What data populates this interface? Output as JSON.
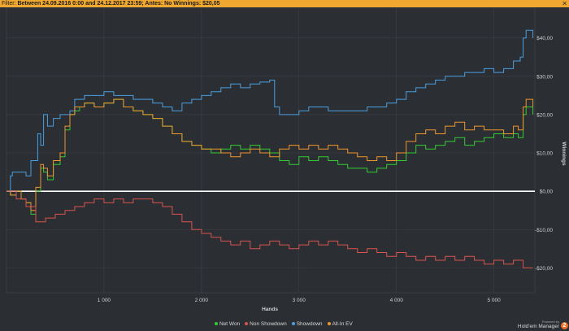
{
  "filter": {
    "label": "Filter:",
    "text": "Between 24.09.2016 0:00 and 24.12.2017 23:59; Antes: No Winnings: $20,05"
  },
  "chart_data": {
    "type": "line",
    "xlabel": "Hands",
    "ylabel": "Winnings",
    "xlim": [
      0,
      5420
    ],
    "ylim": [
      -26.5,
      48
    ],
    "x_ticks": [
      1000,
      2000,
      3000,
      4000,
      5000
    ],
    "x_tick_labels": [
      "1 000",
      "2 000",
      "3 000",
      "4 000",
      "5 000"
    ],
    "y_ticks": [
      40,
      30,
      20,
      10,
      0,
      -10,
      -20
    ],
    "y_tick_labels": [
      "$40,00",
      "$30,00",
      "$20,00",
      "$10,00",
      "$0,00",
      "-$10,00",
      "-$20,00"
    ],
    "grid": true,
    "legend_position": "bottom",
    "series": [
      {
        "name": "Showdown",
        "color": "#4a9fe0",
        "x": [
          0,
          40,
          60,
          200,
          250,
          320,
          350,
          380,
          420,
          480,
          550,
          650,
          700,
          800,
          900,
          1000,
          1100,
          1300,
          1500,
          1600,
          1700,
          1800,
          1900,
          2000,
          2100,
          2200,
          2300,
          2400,
          2500,
          2600,
          2700,
          2750,
          2800,
          3000,
          3100,
          3300,
          3500,
          3700,
          3800,
          3900,
          4000,
          4100,
          4200,
          4300,
          4400,
          4500,
          4700,
          4900,
          5000,
          5100,
          5200,
          5270,
          5300,
          5330,
          5400
        ],
        "y": [
          0,
          4,
          5,
          4,
          8,
          15,
          12,
          20,
          17,
          19,
          20,
          21,
          24,
          25,
          25,
          26,
          25,
          24,
          23,
          22,
          21,
          23,
          24,
          25,
          26,
          27,
          28,
          27,
          28,
          28.5,
          29,
          22,
          20,
          21,
          22,
          21,
          21,
          22,
          22,
          23,
          24,
          26,
          27,
          28,
          29,
          30,
          31,
          32,
          31,
          32,
          34,
          35,
          40,
          42,
          40
        ]
      },
      {
        "name": "Net Won",
        "color": "#33cc33",
        "x": [
          0,
          40,
          100,
          150,
          200,
          250,
          300,
          350,
          380,
          420,
          480,
          550,
          600,
          650,
          700,
          750,
          800,
          900,
          1000,
          1100,
          1200,
          1300,
          1400,
          1500,
          1600,
          1700,
          1800,
          1900,
          2000,
          2100,
          2200,
          2300,
          2400,
          2500,
          2600,
          2700,
          2800,
          2900,
          3000,
          3100,
          3200,
          3300,
          3400,
          3500,
          3600,
          3700,
          3800,
          3900,
          4000,
          4100,
          4200,
          4300,
          4400,
          4500,
          4600,
          4700,
          4800,
          4900,
          5000,
          5100,
          5200,
          5250,
          5300,
          5330,
          5400
        ],
        "y": [
          0,
          -1,
          0,
          -2,
          -3,
          -6,
          0,
          6,
          5,
          3,
          7,
          9,
          16,
          20,
          21,
          22,
          23,
          22,
          23,
          24,
          22,
          21,
          20,
          19,
          17,
          15,
          13,
          12,
          11,
          10,
          11,
          12,
          11,
          12,
          11,
          10,
          8,
          7,
          9,
          8,
          9,
          8,
          7,
          6,
          6,
          5,
          6,
          7,
          8,
          10,
          12,
          11,
          12,
          13,
          14,
          12,
          13,
          14,
          15,
          14,
          15,
          14,
          20,
          22,
          20
        ]
      },
      {
        "name": "All-In EV",
        "color": "#f0962e",
        "x": [
          0,
          40,
          100,
          150,
          200,
          250,
          300,
          350,
          380,
          420,
          480,
          550,
          600,
          650,
          700,
          750,
          800,
          900,
          1000,
          1100,
          1200,
          1300,
          1400,
          1500,
          1600,
          1700,
          1800,
          1900,
          2000,
          2100,
          2200,
          2300,
          2400,
          2500,
          2600,
          2700,
          2800,
          2900,
          3000,
          3100,
          3200,
          3300,
          3400,
          3500,
          3600,
          3700,
          3800,
          3900,
          4000,
          4100,
          4200,
          4300,
          4400,
          4500,
          4600,
          4700,
          4800,
          4900,
          5000,
          5100,
          5200,
          5250,
          5300,
          5330,
          5400
        ],
        "y": [
          0,
          -1,
          0,
          -2,
          -3,
          -5,
          1,
          7,
          6,
          4,
          8,
          10,
          17,
          20,
          22,
          22,
          23,
          22,
          23,
          24,
          22,
          21,
          20,
          19,
          17,
          15,
          13,
          12,
          11,
          11,
          10,
          9,
          10,
          11,
          10,
          9,
          11,
          12,
          11,
          12,
          11,
          12,
          11,
          10,
          9,
          8,
          9,
          8,
          10,
          13,
          15,
          16,
          15,
          17,
          18,
          16,
          17,
          16,
          16,
          15,
          17,
          16,
          22,
          24,
          22
        ]
      },
      {
        "name": "Non Showdown",
        "color": "#d9534f",
        "x": [
          0,
          100,
          200,
          300,
          400,
          500,
          600,
          700,
          800,
          900,
          1000,
          1100,
          1200,
          1300,
          1400,
          1500,
          1600,
          1700,
          1800,
          1900,
          2000,
          2100,
          2200,
          2300,
          2400,
          2500,
          2600,
          2700,
          2800,
          2900,
          3000,
          3100,
          3200,
          3300,
          3400,
          3500,
          3600,
          3700,
          3800,
          3900,
          4000,
          4100,
          4200,
          4300,
          4400,
          4500,
          4600,
          4700,
          4800,
          4900,
          5000,
          5100,
          5200,
          5300,
          5400
        ],
        "y": [
          0,
          -2,
          -4,
          -8,
          -7,
          -6,
          -5,
          -4,
          -3,
          -2,
          -3,
          -2,
          -3,
          -2,
          -2,
          -3,
          -4,
          -6,
          -8,
          -10,
          -11,
          -12,
          -13,
          -14,
          -13,
          -15,
          -14,
          -13,
          -14,
          -15,
          -14,
          -13,
          -14,
          -13,
          -14,
          -15,
          -16,
          -15,
          -16,
          -17,
          -16,
          -17,
          -18,
          -17,
          -18,
          -17,
          -18,
          -17,
          -18,
          -19,
          -18,
          -19,
          -18,
          -20,
          -20
        ]
      }
    ]
  },
  "legend": [
    {
      "label": "Net Won",
      "color": "#33cc33"
    },
    {
      "label": "Non Showdown",
      "color": "#d9534f"
    },
    {
      "label": "Showdown",
      "color": "#4a9fe0"
    },
    {
      "label": "All-In EV",
      "color": "#f0962e"
    }
  ],
  "brand": {
    "powered_by": "Powered by",
    "name": "Hold'em Manager",
    "badge": "2"
  }
}
